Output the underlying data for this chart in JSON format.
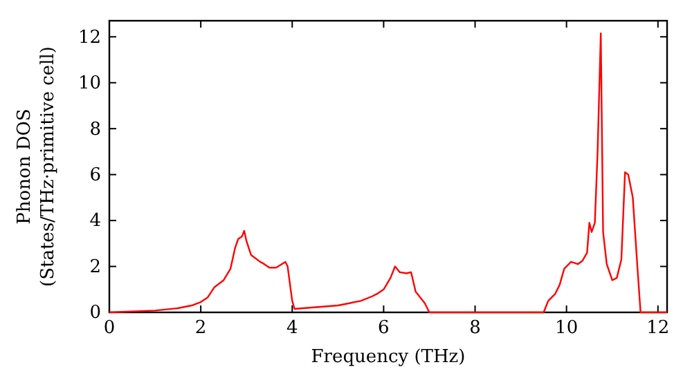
{
  "chart_data": {
    "type": "line",
    "xlabel": "Frequency (THz)",
    "ylabel": "Phonon DOS\n(States/THz·primitive cell)",
    "xlim": [
      0,
      12.2
    ],
    "ylim": [
      0,
      12.7
    ],
    "xticks": [
      0,
      2,
      4,
      6,
      8,
      10,
      12
    ],
    "yticks": [
      0,
      2,
      4,
      6,
      8,
      10,
      12
    ],
    "grid": false,
    "legend": false,
    "series": [
      {
        "color": "#ff0000",
        "x": [
          0,
          1,
          1.5,
          1.8,
          2.0,
          2.15,
          2.3,
          2.5,
          2.65,
          2.75,
          2.82,
          2.9,
          2.95,
          3.0,
          3.1,
          3.3,
          3.35,
          3.5,
          3.65,
          3.85,
          3.9,
          4.0,
          4.05,
          5.0,
          5.5,
          5.75,
          5.85,
          6.0,
          6.15,
          6.25,
          6.35,
          6.5,
          6.6,
          6.7,
          6.9,
          7.0,
          9.5,
          9.6,
          9.75,
          9.85,
          9.95,
          10.1,
          10.25,
          10.35,
          10.45,
          10.5,
          10.55,
          10.62,
          10.68,
          10.75,
          10.8,
          10.88,
          11.0,
          11.1,
          11.2,
          11.28,
          11.35,
          11.45,
          11.55,
          11.62,
          12.2
        ],
        "values": [
          0,
          0.08,
          0.18,
          0.3,
          0.45,
          0.65,
          1.1,
          1.4,
          1.9,
          2.8,
          3.2,
          3.3,
          3.55,
          3.1,
          2.5,
          2.2,
          2.15,
          1.95,
          1.95,
          2.2,
          2.0,
          0.5,
          0.15,
          0.3,
          0.5,
          0.7,
          0.8,
          1.0,
          1.5,
          2.0,
          1.75,
          1.7,
          1.75,
          0.9,
          0.4,
          0,
          0,
          0.5,
          0.8,
          1.2,
          1.9,
          2.2,
          2.1,
          2.25,
          2.6,
          3.9,
          3.5,
          3.9,
          7,
          12.15,
          3.5,
          2.1,
          1.4,
          1.5,
          2.3,
          6.1,
          6.0,
          5.0,
          2.0,
          0,
          0
        ]
      }
    ]
  }
}
